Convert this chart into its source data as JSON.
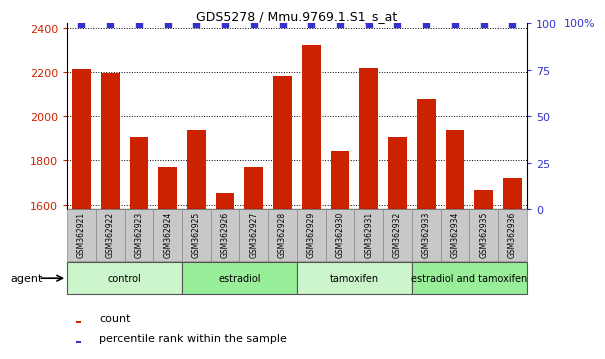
{
  "title": "GDS5278 / Mmu.9769.1.S1_s_at",
  "samples": [
    "GSM362921",
    "GSM362922",
    "GSM362923",
    "GSM362924",
    "GSM362925",
    "GSM362926",
    "GSM362927",
    "GSM362928",
    "GSM362929",
    "GSM362930",
    "GSM362931",
    "GSM362932",
    "GSM362933",
    "GSM362934",
    "GSM362935",
    "GSM362936"
  ],
  "counts": [
    2215,
    2195,
    1905,
    1770,
    1940,
    1655,
    1770,
    2180,
    2320,
    1845,
    2220,
    1905,
    2080,
    1940,
    1665,
    1720
  ],
  "bar_color": "#cc2200",
  "dot_color": "#3333cc",
  "ylim_left": [
    1580,
    2420
  ],
  "ylim_right": [
    0,
    100
  ],
  "yticks_left": [
    1600,
    1800,
    2000,
    2200,
    2400
  ],
  "yticks_right": [
    0,
    25,
    50,
    75,
    100
  ],
  "groups": [
    {
      "label": "control",
      "start": 0,
      "end": 4,
      "color": "#d4f5d4"
    },
    {
      "label": "estradiol",
      "start": 4,
      "end": 8,
      "color": "#aaeaaa"
    },
    {
      "label": "tamoxifen",
      "start": 8,
      "end": 12,
      "color": "#d4f5d4"
    },
    {
      "label": "estradiol and tamoxifen",
      "start": 12,
      "end": 16,
      "color": "#aaeaaa"
    }
  ],
  "agent_label": "agent",
  "legend_count_label": "count",
  "legend_percentile_label": "percentile rank within the sample",
  "background_color": "#ffffff",
  "right_axis_top_label": "100%"
}
